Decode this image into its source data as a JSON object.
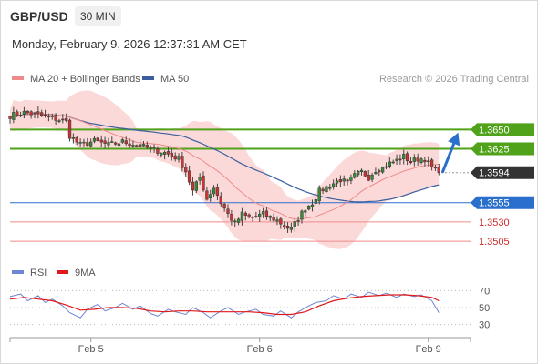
{
  "header": {
    "symbol": "GBP/USD",
    "timeframe": "30 MIN",
    "datetime": "Monday, February 9, 2026 12:37:31 AM CET"
  },
  "colors": {
    "support": "#2a6fcc",
    "resistance_green": "#4fa219",
    "minor_red": "#f08a8a",
    "band_fill": "#fbd2d2",
    "ma20": "#f08a8a",
    "ma50": "#3b5f9e",
    "candle": "#555555",
    "candle_up": "#3a8a3a",
    "candle_down": "#cc3333",
    "rsi": "#6e86d6",
    "rsi_ma": "#e01818",
    "price_box_current": "#333333",
    "arrow": "#2a6fcc"
  },
  "chart_data": [
    {
      "type": "candlestick",
      "legend": [
        {
          "label": "MA 20 + Bollinger Bands",
          "color": "#f08a8a"
        },
        {
          "label": "MA 50",
          "color": "#3b5f9e"
        }
      ],
      "watermark": "Research © 2026 Trading Central",
      "ylim": [
        1.3485,
        1.37
      ],
      "x_ticks": [
        {
          "label": "Feb 5",
          "index": 23
        },
        {
          "label": "Feb 6",
          "index": 71
        },
        {
          "label": "Feb 9",
          "index": 119
        }
      ],
      "levels": [
        {
          "label": "1.3650",
          "value": 1.365,
          "kind": "resistance"
        },
        {
          "label": "1.3625",
          "value": 1.3625,
          "kind": "resistance"
        },
        {
          "label": "1.3594",
          "value": 1.3594,
          "kind": "current"
        },
        {
          "label": "1.3555",
          "value": 1.3555,
          "kind": "support"
        },
        {
          "label": "1.3530",
          "value": 1.353,
          "kind": "minor"
        },
        {
          "label": "1.3505",
          "value": 1.3505,
          "kind": "minor"
        }
      ],
      "price_points": [
        [
          0,
          1.3668
        ],
        [
          4,
          1.3672
        ],
        [
          8,
          1.3669
        ],
        [
          12,
          1.3665
        ],
        [
          16,
          1.366
        ],
        [
          17,
          1.3642
        ],
        [
          20,
          1.363
        ],
        [
          24,
          1.3635
        ],
        [
          28,
          1.363
        ],
        [
          32,
          1.3634
        ],
        [
          36,
          1.363
        ],
        [
          40,
          1.3625
        ],
        [
          44,
          1.362
        ],
        [
          48,
          1.3612
        ],
        [
          50,
          1.3596
        ],
        [
          52,
          1.357
        ],
        [
          54,
          1.3588
        ],
        [
          56,
          1.356
        ],
        [
          58,
          1.3575
        ],
        [
          60,
          1.3555
        ],
        [
          62,
          1.354
        ],
        [
          64,
          1.3528
        ],
        [
          66,
          1.354
        ],
        [
          68,
          1.3535
        ],
        [
          72,
          1.354
        ],
        [
          76,
          1.3532
        ],
        [
          78,
          1.3525
        ],
        [
          80,
          1.352
        ],
        [
          82,
          1.3535
        ],
        [
          84,
          1.3548
        ],
        [
          86,
          1.3555
        ],
        [
          88,
          1.357
        ],
        [
          90,
          1.3575
        ],
        [
          92,
          1.358
        ],
        [
          94,
          1.3585
        ],
        [
          96,
          1.358
        ],
        [
          98,
          1.359
        ],
        [
          100,
          1.3595
        ],
        [
          102,
          1.3588
        ],
        [
          104,
          1.3598
        ],
        [
          106,
          1.36
        ],
        [
          108,
          1.3606
        ],
        [
          110,
          1.361
        ],
        [
          112,
          1.3615
        ],
        [
          114,
          1.3608
        ],
        [
          116,
          1.3612
        ],
        [
          118,
          1.3612
        ],
        [
          120,
          1.36
        ],
        [
          122,
          1.3594
        ]
      ],
      "forecast_arrow": {
        "from": [
          123,
          1.3594
        ],
        "to": [
          128,
          1.3646
        ]
      }
    },
    {
      "type": "line",
      "legend": [
        {
          "label": "RSI",
          "color": "#6e86d6"
        },
        {
          "label": "9MA",
          "color": "#e01818"
        }
      ],
      "ylim": [
        20,
        80
      ],
      "y_ticks": [
        70,
        50,
        30
      ],
      "series": [
        {
          "name": "RSI",
          "x": [
            0,
            3,
            5,
            8,
            10,
            12,
            15,
            17,
            20,
            22,
            25,
            27,
            30,
            32,
            35,
            37,
            40,
            42,
            45,
            47,
            50,
            52,
            55,
            57,
            60,
            62,
            65,
            67,
            70,
            72,
            75,
            77,
            80,
            82,
            85,
            87,
            90,
            92,
            95,
            97,
            100,
            102,
            105,
            107,
            110,
            112,
            115,
            117,
            120,
            122
          ],
          "values": [
            63,
            66,
            58,
            64,
            56,
            60,
            52,
            44,
            38,
            48,
            54,
            46,
            50,
            55,
            48,
            52,
            43,
            40,
            48,
            45,
            42,
            50,
            44,
            38,
            46,
            50,
            42,
            45,
            48,
            42,
            40,
            46,
            38,
            45,
            52,
            56,
            58,
            64,
            60,
            66,
            62,
            68,
            64,
            67,
            62,
            66,
            63,
            65,
            58,
            44
          ]
        },
        {
          "name": "9MA",
          "x": [
            0,
            4,
            8,
            12,
            16,
            20,
            24,
            28,
            32,
            36,
            40,
            44,
            48,
            52,
            56,
            60,
            64,
            68,
            72,
            76,
            80,
            84,
            88,
            92,
            96,
            100,
            104,
            108,
            112,
            116,
            120,
            122
          ],
          "values": [
            60,
            62,
            60,
            58,
            53,
            47,
            48,
            50,
            50,
            49,
            46,
            45,
            46,
            46,
            45,
            45,
            45,
            45,
            44,
            42,
            42,
            45,
            52,
            58,
            61,
            63,
            64,
            65,
            65,
            64,
            62,
            58
          ]
        }
      ]
    }
  ]
}
